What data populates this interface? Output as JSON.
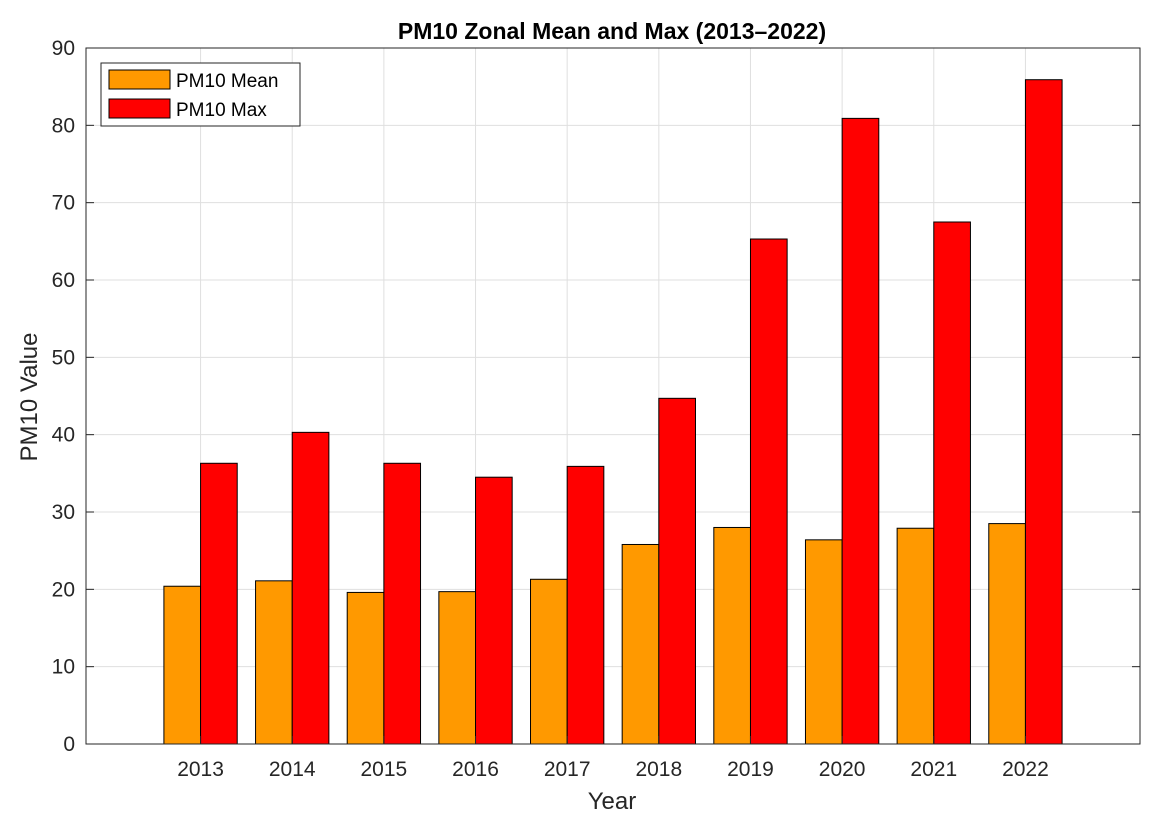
{
  "chart_data": {
    "type": "bar",
    "title": "PM10 Zonal Mean and Max (2013–2022)",
    "xlabel": "Year",
    "ylabel": "PM10 Value",
    "categories": [
      "2013",
      "2014",
      "2015",
      "2016",
      "2017",
      "2018",
      "2019",
      "2020",
      "2021",
      "2022"
    ],
    "series": [
      {
        "name": "PM10 Mean",
        "color": "#ff9900",
        "values": [
          20.4,
          21.1,
          19.6,
          19.7,
          21.3,
          25.8,
          28.0,
          26.4,
          27.9,
          28.5
        ]
      },
      {
        "name": "PM10 Max",
        "color": "#ff0000",
        "values": [
          36.3,
          40.3,
          36.3,
          34.5,
          35.9,
          44.7,
          65.3,
          80.9,
          67.5,
          85.9
        ]
      }
    ],
    "ylim": [
      0,
      90
    ],
    "yticks": [
      0,
      10,
      20,
      30,
      40,
      50,
      60,
      70,
      80,
      90
    ],
    "grid": true,
    "legend_position": "top-left"
  }
}
